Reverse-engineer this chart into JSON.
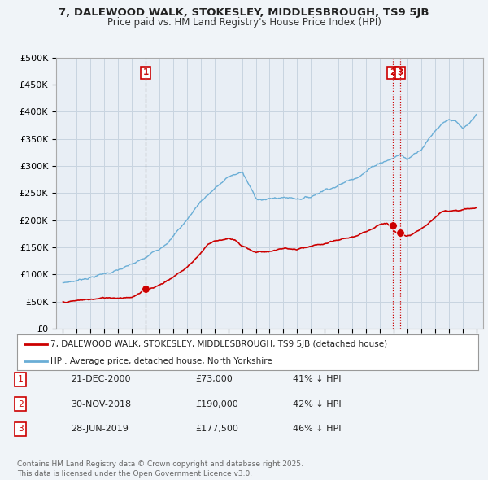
{
  "title_line1": "7, DALEWOOD WALK, STOKESLEY, MIDDLESBROUGH, TS9 5JB",
  "title_line2": "Price paid vs. HM Land Registry's House Price Index (HPI)",
  "background_color": "#f0f4f8",
  "plot_bg_color": "#e8eef5",
  "grid_color": "#c8d4e0",
  "hpi_color": "#6aaed6",
  "price_color": "#cc0000",
  "ylim": [
    0,
    500000
  ],
  "yticks": [
    0,
    50000,
    100000,
    150000,
    200000,
    250000,
    300000,
    350000,
    400000,
    450000,
    500000
  ],
  "ytick_labels": [
    "£0",
    "£50K",
    "£100K",
    "£150K",
    "£200K",
    "£250K",
    "£300K",
    "£350K",
    "£400K",
    "£450K",
    "£500K"
  ],
  "transactions": [
    {
      "num": 1,
      "x_plot": 2001.0,
      "price": 73000,
      "label": "1",
      "vline_color": "#999999",
      "vline_style": "--"
    },
    {
      "num": 2,
      "x_plot": 2018.92,
      "price": 190000,
      "label": "2",
      "vline_color": "#cc0000",
      "vline_style": ":"
    },
    {
      "num": 3,
      "x_plot": 2019.49,
      "price": 177500,
      "label": "3",
      "vline_color": "#cc0000",
      "vline_style": ":"
    }
  ],
  "legend_entries": [
    "7, DALEWOOD WALK, STOKESLEY, MIDDLESBROUGH, TS9 5JB (detached house)",
    "HPI: Average price, detached house, North Yorkshire"
  ],
  "table_rows": [
    {
      "num": "1",
      "date": "21-DEC-2000",
      "price": "£73,000",
      "pct": "41% ↓ HPI"
    },
    {
      "num": "2",
      "date": "30-NOV-2018",
      "price": "£190,000",
      "pct": "42% ↓ HPI"
    },
    {
      "num": "3",
      "date": "28-JUN-2019",
      "price": "£177,500",
      "pct": "46% ↓ HPI"
    }
  ],
  "footnote": "Contains HM Land Registry data © Crown copyright and database right 2025.\nThis data is licensed under the Open Government Licence v3.0.",
  "xlim": [
    1994.5,
    2025.5
  ],
  "xticks": [
    1995,
    1996,
    1997,
    1998,
    1999,
    2000,
    2001,
    2002,
    2003,
    2004,
    2005,
    2006,
    2007,
    2008,
    2009,
    2010,
    2011,
    2012,
    2013,
    2014,
    2015,
    2016,
    2017,
    2018,
    2019,
    2020,
    2021,
    2022,
    2023,
    2024,
    2025
  ],
  "hpi_anchors_x": [
    1995,
    1996,
    1997,
    1998,
    1999,
    2000,
    2001,
    2002,
    2003,
    2004,
    2005,
    2006,
    2007,
    2008,
    2009,
    2010,
    2011,
    2012,
    2013,
    2014,
    2015,
    2016,
    2017,
    2018,
    2018.5,
    2019,
    2019.5,
    2020,
    2021,
    2022,
    2022.5,
    2023,
    2023.5,
    2024,
    2024.5,
    2025
  ],
  "hpi_anchors_y": [
    85000,
    90000,
    98000,
    105000,
    112000,
    120000,
    130000,
    148000,
    175000,
    205000,
    240000,
    265000,
    285000,
    295000,
    245000,
    245000,
    248000,
    248000,
    252000,
    268000,
    278000,
    290000,
    308000,
    325000,
    330000,
    335000,
    342000,
    332000,
    355000,
    390000,
    405000,
    415000,
    410000,
    395000,
    400000,
    415000
  ],
  "price_anchors_x": [
    1995,
    1996,
    1997,
    1998,
    1999,
    2000,
    2001,
    2002,
    2003,
    2004,
    2005,
    2005.5,
    2006,
    2007,
    2007.5,
    2008,
    2009,
    2010,
    2011,
    2012,
    2013,
    2014,
    2015,
    2016,
    2017,
    2018,
    2018.5,
    2019,
    2019.5,
    2020,
    2021,
    2022,
    2022.5,
    2023,
    2024,
    2025
  ],
  "price_anchors_y": [
    50000,
    52000,
    54000,
    56000,
    58000,
    62000,
    73000,
    85000,
    100000,
    118000,
    145000,
    162000,
    168000,
    175000,
    170000,
    158000,
    148000,
    150000,
    155000,
    152000,
    155000,
    158000,
    162000,
    168000,
    175000,
    193000,
    195000,
    183000,
    178000,
    172000,
    185000,
    205000,
    215000,
    218000,
    222000,
    225000
  ]
}
